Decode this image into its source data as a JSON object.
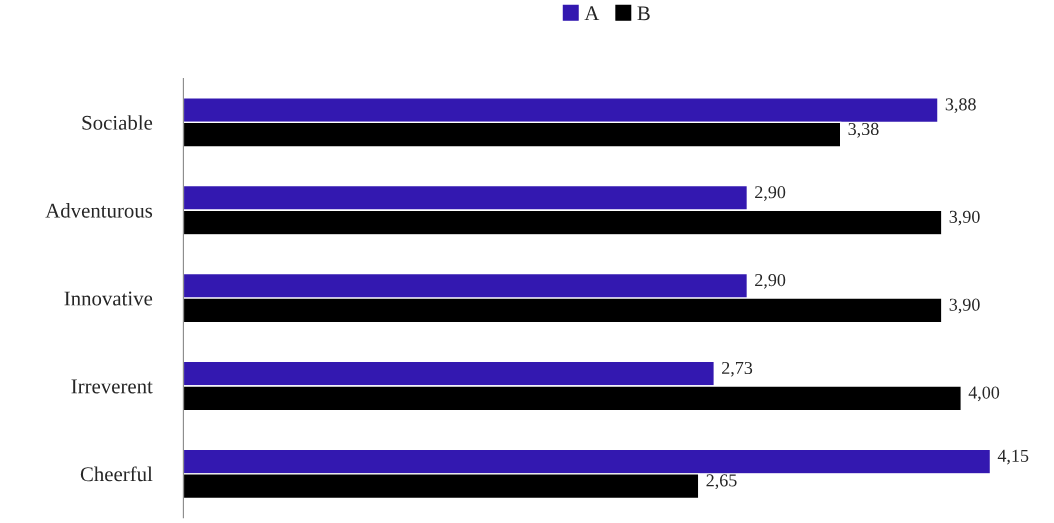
{
  "chart_data": {
    "type": "bar",
    "orientation": "horizontal",
    "categories": [
      "Sociable",
      "Adventurous",
      "Innovative",
      "Irreverent",
      "Cheerful"
    ],
    "series": [
      {
        "name": "A",
        "color": "#3318b0",
        "values": [
          3.88,
          2.9,
          2.9,
          2.73,
          4.15
        ],
        "value_labels": [
          "3,88",
          "2,90",
          "2,90",
          "2,73",
          "4,15"
        ]
      },
      {
        "name": "B",
        "color": "#000000",
        "values": [
          3.38,
          3.9,
          3.9,
          4.0,
          2.65
        ],
        "value_labels": [
          "3,38",
          "3,90",
          "3,90",
          "4,00",
          "2,65"
        ]
      }
    ],
    "tick_labels": "y",
    "grid": false,
    "legend": "top"
  }
}
